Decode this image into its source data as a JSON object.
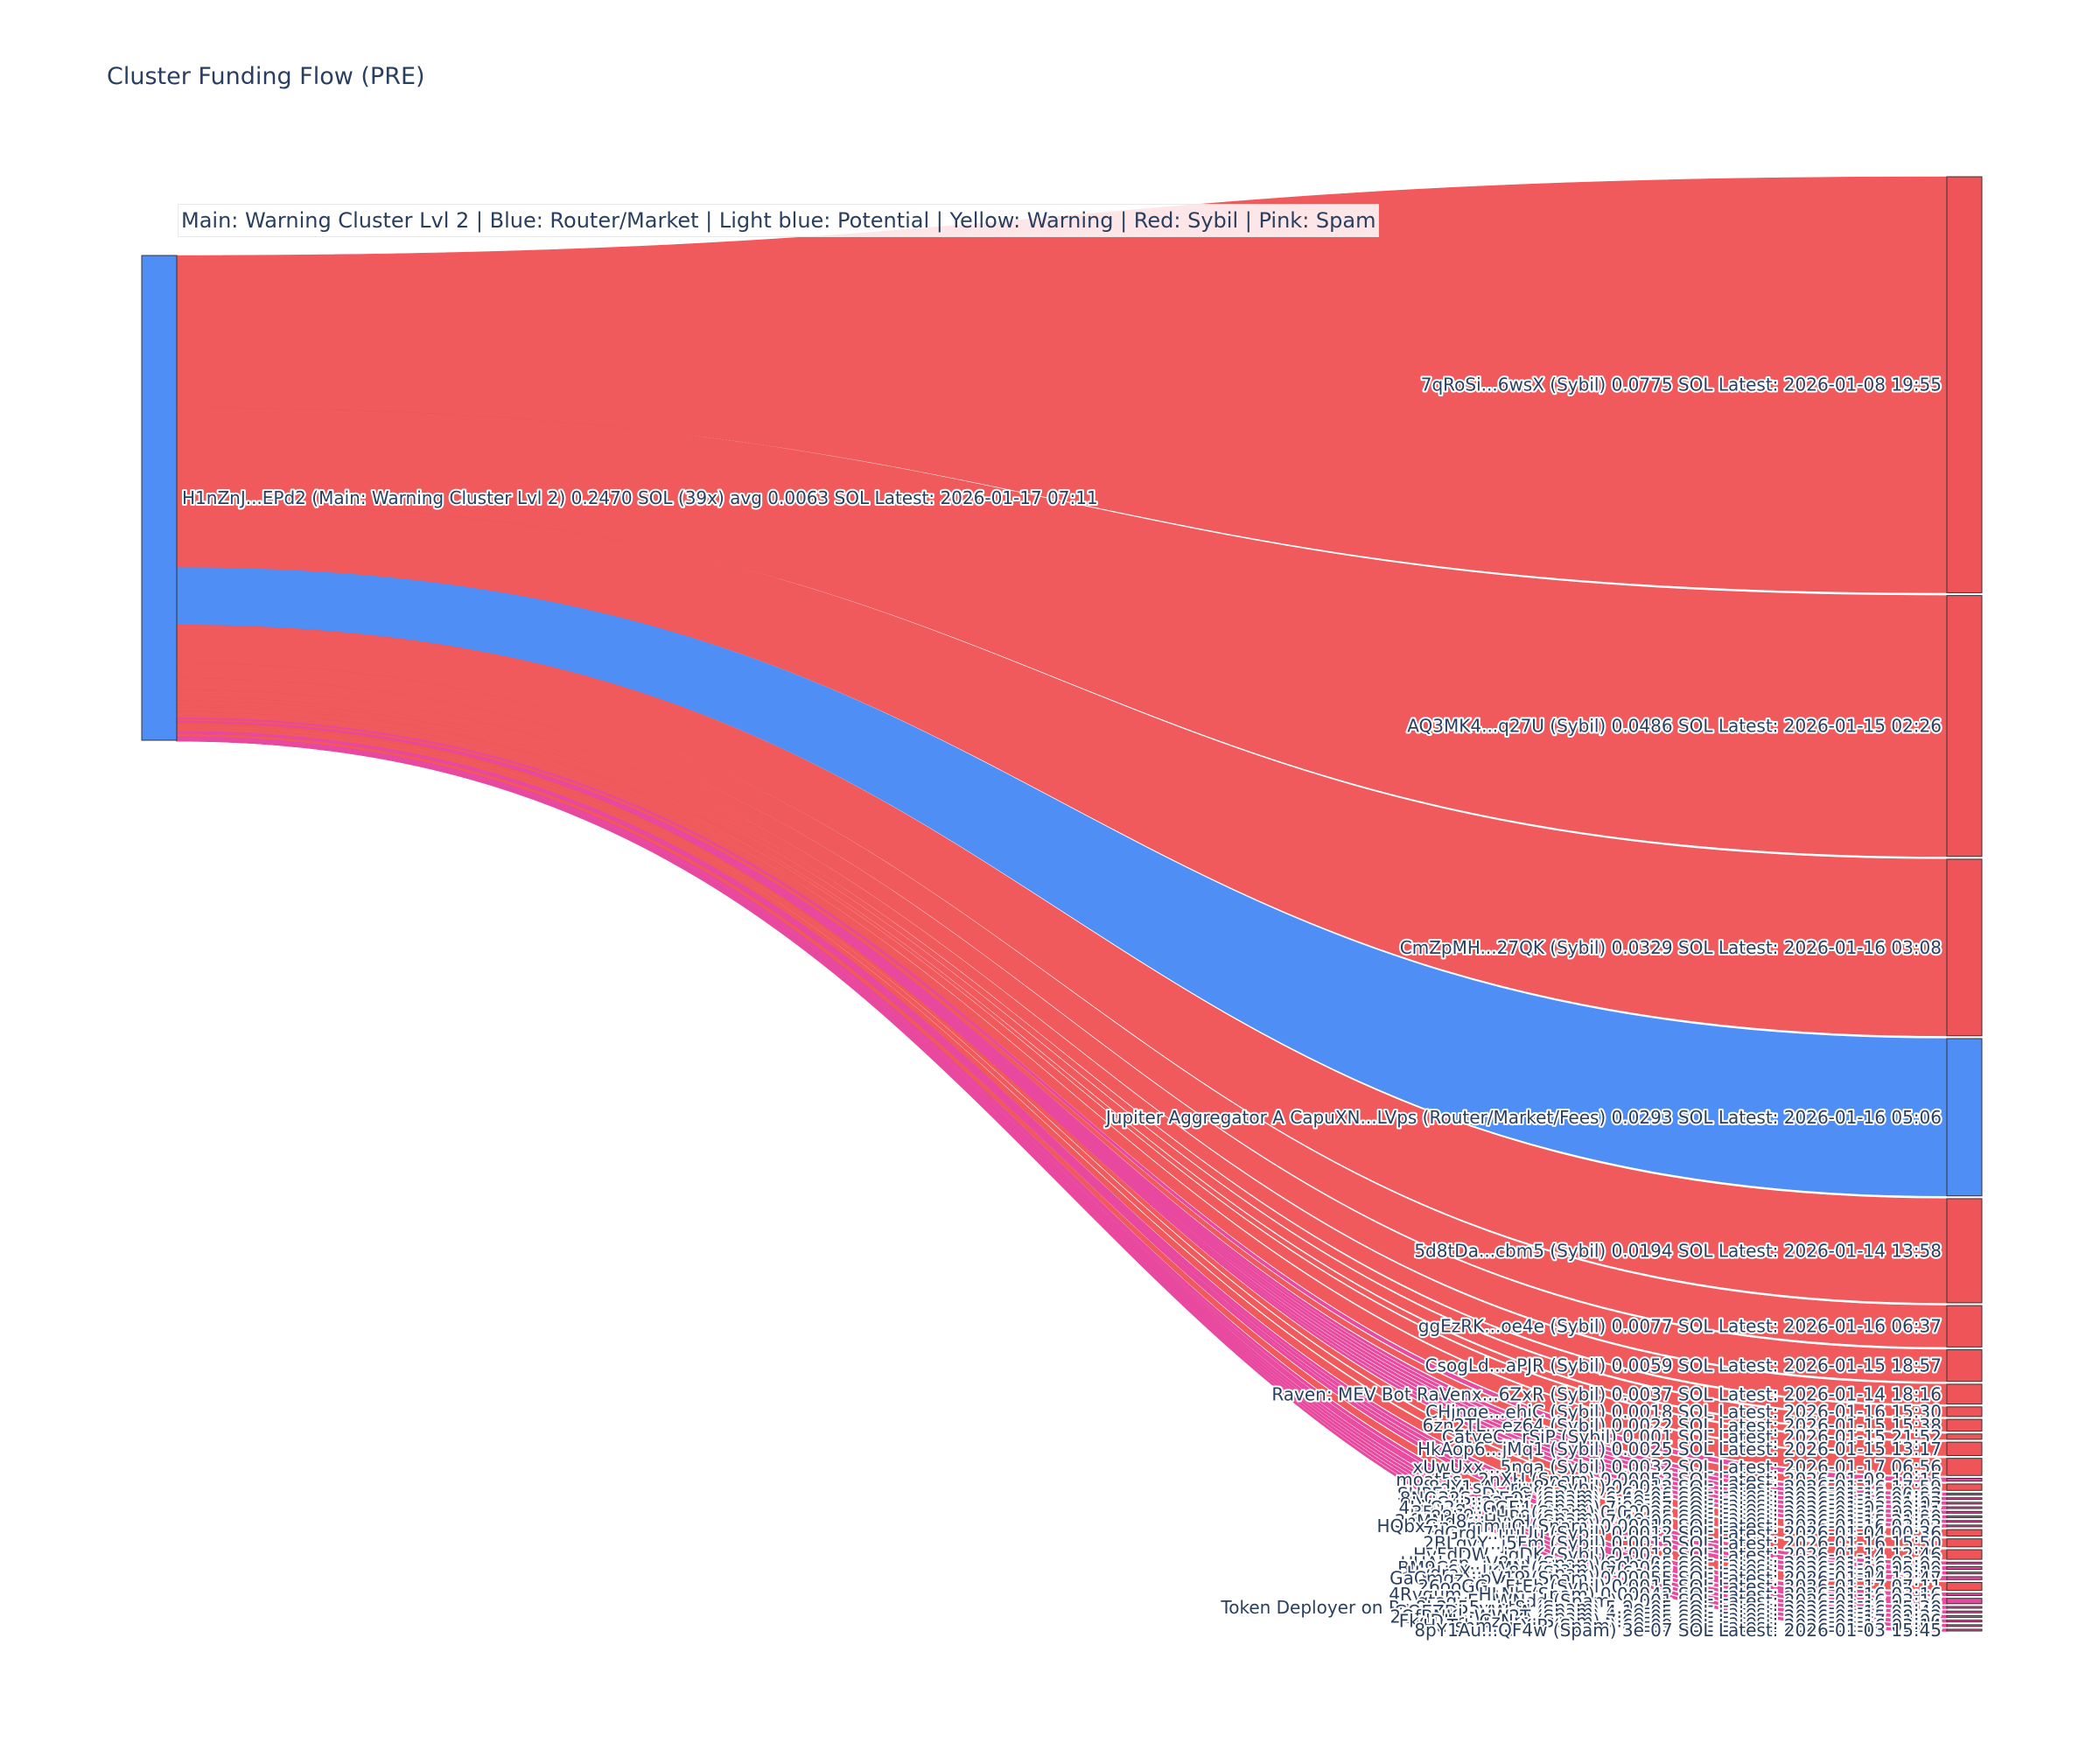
{
  "title": "Cluster Funding Flow (PRE)",
  "annotation": "Main: Warning Cluster Lvl 2  |  Blue: Router/Market | Light blue: Potential | Yellow: Warning | Red: Sybil | Pink: Spam",
  "colors": {
    "router": "#4f8ef5",
    "sybil": "#ef5558",
    "spam": "#e8489e",
    "main": "#4f8ef5"
  },
  "chart_data": {
    "type": "sankey",
    "source": {
      "label": "H1nZnJ...EPd2 (Main: Warning Cluster Lvl 2) 0.2470 SOL (39x) avg 0.0063 SOL Latest: 2026-01-17 07:11",
      "value": 0.247,
      "category": "main"
    },
    "targets": [
      {
        "label": "7qRoSi...6wsX (Sybil) 0.0775 SOL Latest: 2026-01-08 19:55",
        "value": 0.0775,
        "category": "sybil"
      },
      {
        "label": "AQ3MK4...q27U (Sybil) 0.0486 SOL Latest: 2026-01-15 02:26",
        "value": 0.0486,
        "category": "sybil"
      },
      {
        "label": "CmZpMH...27QK (Sybil) 0.0329 SOL Latest: 2026-01-16 03:08",
        "value": 0.0329,
        "category": "sybil"
      },
      {
        "label": "Jupiter Aggregator A CapuXN...LVps (Router/Market/Fees) 0.0293 SOL Latest: 2026-01-16 05:06",
        "value": 0.0293,
        "category": "router"
      },
      {
        "label": "5d8tDa...cbm5 (Sybil) 0.0194 SOL Latest: 2026-01-14 13:58",
        "value": 0.0194,
        "category": "sybil"
      },
      {
        "label": "ggEzRK...oe4e (Sybil) 0.0077 SOL Latest: 2026-01-16 06:37",
        "value": 0.0077,
        "category": "sybil"
      },
      {
        "label": "CsogLd...aPJR (Sybil) 0.0059 SOL Latest: 2026-01-15 18:57",
        "value": 0.0059,
        "category": "sybil"
      },
      {
        "label": "Raven: MEV Bot RaVenx...6ZxR (Sybil) 0.0037 SOL Latest: 2026-01-14 18:16",
        "value": 0.0037,
        "category": "sybil"
      },
      {
        "label": "CHjnge...ehjC (Sybil) 0.0018 SOL Latest: 2026-01-16 15:30",
        "value": 0.0018,
        "category": "sybil"
      },
      {
        "label": "6zn2TL...ez64 (Sybil) 0.0022 SOL Latest: 2026-01-15 15:38",
        "value": 0.0022,
        "category": "sybil"
      },
      {
        "label": "CatyeC...rSiP (Sybil) 0.001 SOL Latest: 2026-01-15 21:52",
        "value": 0.001,
        "category": "sybil"
      },
      {
        "label": "HkAop6...jMq1 (Sybil) 0.0025 SOL Latest: 2026-01-15 13:17",
        "value": 0.0025,
        "category": "sybil"
      },
      {
        "label": "xUwUxx...5nqa (Sybil) 0.0032 SOL Latest: 2026-01-17 06:56",
        "value": 0.0032,
        "category": "sybil"
      },
      {
        "label": "moat5s...2nXH (Spam) 0.00053 SOL Latest: 2026-01-08 19:15",
        "value": 0.00053,
        "category": "spam"
      },
      {
        "label": "8dY1sA...riu8 (Sybil) 0.0012 SOL Latest: 2026-01-16 17:59",
        "value": 0.0012,
        "category": "sybil"
      },
      {
        "label": "SUPErM...DxUC (Spam) 8.6e-06 SOL Latest: 2026-01-15 00:09",
        "value": 8.6e-06,
        "category": "spam"
      },
      {
        "label": "8NQ32S...eEQr (Spam) 6.4e-05 SOL Latest: 2026-01-16 04:57",
        "value": 6.4e-05,
        "category": "spam"
      },
      {
        "label": "LvjCui...22Fm (Spam) 3.5e-05 SOL Latest: 2026-01-16 01:03",
        "value": 3.5e-05,
        "category": "spam"
      },
      {
        "label": "4LeQ2g...CGE4 (Spam) 7.9e-07 SOL Latest: 2026-01-03 20:17",
        "value": 7.9e-07,
        "category": "spam"
      },
      {
        "label": "35dsze...Mvji (Spam) 0.00028 SOL Latest: 2026-01-15 02:11",
        "value": 0.00028,
        "category": "spam"
      },
      {
        "label": "sy88tv...oHP8 (Spam) 5.5e-05 SOL Latest: 2026-01-16 18:00",
        "value": 5.5e-05,
        "category": "spam"
      },
      {
        "label": "3nMNd8...HyyH (Spam) 7.4e-06 SOL Latest: 2026-01-15 21:58",
        "value": 7.4e-06,
        "category": "spam"
      },
      {
        "label": "HQbxGn...mmuQ (Spam) 0.00018 SOL Latest: 2026-01-16 02:03",
        "value": 0.00018,
        "category": "spam"
      },
      {
        "label": "7dGrdJ...uuUu (Sybil) 0.0012 SOL Latest: 2026-01-04 00:36",
        "value": 0.0012,
        "category": "sybil"
      },
      {
        "label": "2BLgvY...j5Fm (Sybil) 0.0015 SOL Latest: 2026-01-16 15:50",
        "value": 0.0015,
        "category": "sybil"
      },
      {
        "label": "HvFdDW...jqDK (Sybil) 0.0018 SOL Latest: 2026-01-14 12:46",
        "value": 0.0018,
        "category": "sybil"
      },
      {
        "label": "UUAhsp...V8yd (Spam) 6.1e-05 SOL Latest: 2026-01-16 03:03",
        "value": 6.1e-05,
        "category": "spam"
      },
      {
        "label": "BM9Ccy...jvMN (Spam) 0.00049 SOL Latest: 2026-01-16 05:09",
        "value": 0.00049,
        "category": "spam"
      },
      {
        "label": "HydraX...Ky85 (Spam) 7.6e-05 SOL Latest: 2026-01-08 19:10",
        "value": 7.6e-05,
        "category": "spam"
      },
      {
        "label": "GaCmqz...pV19 (Spam) 0.00055 SOL Latest: 2026-01-14 12:47",
        "value": 0.00055,
        "category": "spam"
      },
      {
        "label": "26ooGG...FtEb (Sybil) 0.0015 SOL Latest: 2026-01-17 07:11",
        "value": 0.0015,
        "category": "sybil"
      },
      {
        "label": "4Rvgum...HLNb (Spam) 0.00042 SOL Latest: 2026-01-16 03:16",
        "value": 0.00042,
        "category": "spam"
      },
      {
        "label": "gtagyE...WNdd (Spam) 0.001 SOL Latest: 2026-01-16 03:16",
        "value": 0.001,
        "category": "spam"
      },
      {
        "label": "Token Deployer on Pu 8L2y55...bt8j (Spam) 5.9e-05 SOL Latest: 2026-01-16 15:30",
        "value": 5.9e-05,
        "category": "spam"
      },
      {
        "label": "GQEZDi...VWyA (Spam) 4.1e-05 SOL Latest: 2026-01-16 02:40",
        "value": 4.1e-05,
        "category": "spam"
      },
      {
        "label": "2QfBNK...WW2T (Spam) 4.8e-05 SOL Latest: 2026-01-15 08:32",
        "value": 4.8e-05,
        "category": "spam"
      },
      {
        "label": "FkdDHr...CzNm (Spam) 7.6e-05 SOL Latest: 2026-01-17 01:06",
        "value": 7.6e-05,
        "category": "spam"
      },
      {
        "label": "HuTshm...pXiP (Spam) 6e-09 SOL Latest: 2026-01-16 03:14",
        "value": 6e-09,
        "category": "spam"
      },
      {
        "label": "8pY1Au...QF4w (Spam) 3e-07 SOL Latest: 2026-01-03 15:45",
        "value": 3e-07,
        "category": "spam"
      }
    ]
  }
}
